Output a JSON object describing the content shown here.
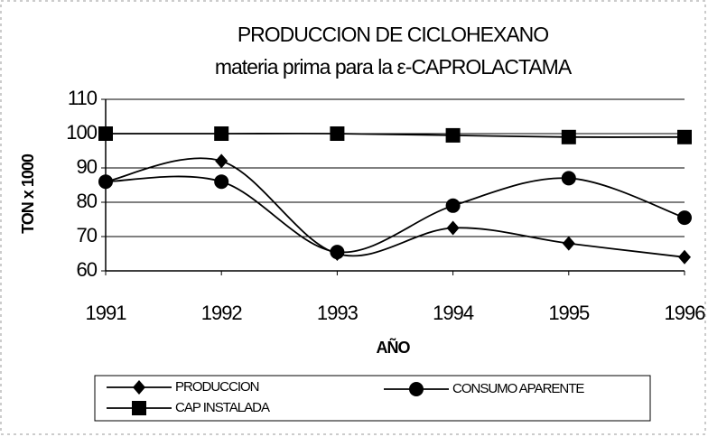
{
  "chart_data": {
    "type": "line",
    "title": "PRODUCCION DE CICLOHEXANO",
    "subtitle": "materia prima para la ε-CAPROLACTAMA",
    "x_label": "AÑO",
    "y_label": "TON x 1000",
    "x": [
      1991,
      1992,
      1993,
      1994,
      1995,
      1996
    ],
    "xlim": [
      1991,
      1996
    ],
    "xticks": [
      1991,
      1992,
      1993,
      1994,
      1995,
      1996
    ],
    "ylim": [
      60,
      110
    ],
    "yticks": [
      60,
      70,
      80,
      90,
      100,
      110
    ],
    "grid": true,
    "smooth": true,
    "legend": "bottom",
    "series": [
      {
        "name": "PRODUCCION",
        "color": "#000000",
        "marker": "diamond",
        "values": [
          86,
          92,
          65,
          72.5,
          68,
          64
        ]
      },
      {
        "name": "CONSUMO APARENTE",
        "color": "#000000",
        "marker": "circle",
        "values": [
          86,
          86,
          65.5,
          79,
          87,
          75.5
        ]
      },
      {
        "name": "CAP INSTALADA",
        "color": "#000000",
        "marker": "square",
        "values": [
          100,
          100,
          100,
          99.5,
          99,
          99
        ]
      }
    ]
  }
}
